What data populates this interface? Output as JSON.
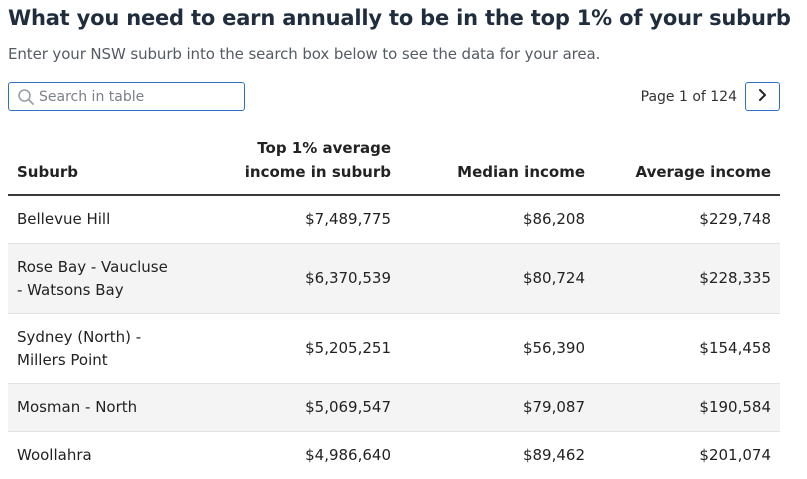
{
  "title": "What you need to earn annually to be in the top 1% of your suburb",
  "subtitle": "Enter your NSW suburb into the search box below to see the data for your area.",
  "search": {
    "placeholder": "Search in table",
    "icon": "search-icon"
  },
  "pagination": {
    "label": "Page 1 of 124",
    "next_icon": "chevron-right-icon"
  },
  "table": {
    "headers": {
      "suburb": "Suburb",
      "top1_line1": "Top 1% average",
      "top1_line2": "income in suburb",
      "median": "Median income",
      "average": "Average income"
    },
    "rows": [
      {
        "suburb": "Bellevue Hill",
        "top1": "$7,489,775",
        "median": "$86,208",
        "average": "$229,748"
      },
      {
        "suburb": "Rose Bay - Vaucluse - Watsons Bay",
        "top1": "$6,370,539",
        "median": "$80,724",
        "average": "$228,335"
      },
      {
        "suburb": "Sydney (North) - Millers Point",
        "top1": "$5,205,251",
        "median": "$56,390",
        "average": "$154,458"
      },
      {
        "suburb": "Mosman - North",
        "top1": "$5,069,547",
        "median": "$79,087",
        "average": "$190,584"
      },
      {
        "suburb": "Woollahra",
        "top1": "$4,986,640",
        "median": "$89,462",
        "average": "$201,074"
      }
    ]
  },
  "colors": {
    "accent": "#2f72c4",
    "title": "#1f2d3d",
    "row_alt": "#f4f4f4"
  }
}
